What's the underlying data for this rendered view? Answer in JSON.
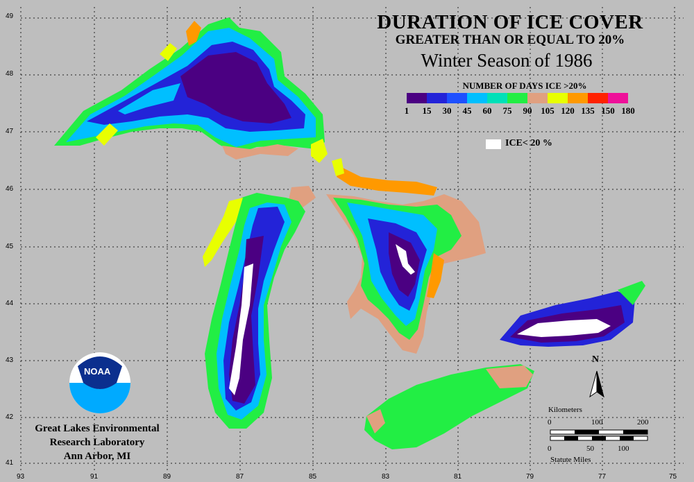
{
  "title": "DURATION OF ICE COVER",
  "subtitle": "GREATER THAN OR EQUAL TO 20%",
  "season": "Winter Season of 1986",
  "legend": {
    "title": "NUMBER OF DAYS ICE >20%",
    "ticks": [
      "1",
      "15",
      "30",
      "45",
      "60",
      "75",
      "90",
      "105",
      "120",
      "135",
      "150",
      "180"
    ],
    "colors": [
      "#4b0082",
      "#2323d8",
      "#1e50ff",
      "#00bfff",
      "#00e0b8",
      "#22ee44",
      "#e0a080",
      "#e8ff00",
      "#ff9900",
      "#ff2200",
      "#ee1099"
    ],
    "ice_label": "ICE< 20 %",
    "ice_color": "#ffffff"
  },
  "axes": {
    "lat_labels": [
      "49",
      "48",
      "47",
      "46",
      "45",
      "44",
      "43",
      "42",
      "41"
    ],
    "lon_labels": [
      "93",
      "91",
      "89",
      "87",
      "85",
      "83",
      "81",
      "79",
      "77",
      "75"
    ]
  },
  "lab": {
    "logo_text": "NOAA",
    "line1": "Great Lakes Environmental",
    "line2": "Research Laboratory",
    "line3": "Ann Arbor, MI"
  },
  "north_label": "N",
  "scale": {
    "km_label": "Kilometers",
    "km_ticks": [
      "0",
      "100",
      "200"
    ],
    "mi_ticks": [
      "0",
      "50",
      "100"
    ],
    "mi_label": "Statute Miles"
  }
}
